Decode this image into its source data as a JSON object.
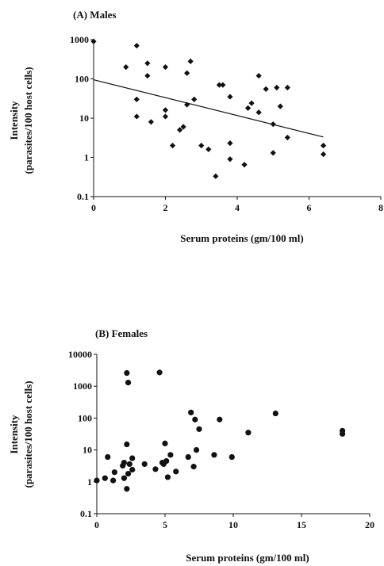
{
  "chart_data": [
    {
      "type": "scatter",
      "title": "(A) Males",
      "xlabel": "Serum proteins (gm/100 ml)",
      "ylabel": [
        "Intensity",
        "(parasites/100 host cells)"
      ],
      "xlim": [
        0,
        8
      ],
      "ylim": [
        0.1,
        1000
      ],
      "yscale": "log",
      "xticks": [
        "0",
        "2",
        "4",
        "6",
        "8"
      ],
      "yticks": [
        "0.1",
        "1",
        "10",
        "100",
        "1000"
      ],
      "marker": "diamond",
      "points": [
        [
          0.0,
          900
        ],
        [
          0.9,
          200
        ],
        [
          1.2,
          700
        ],
        [
          1.2,
          30
        ],
        [
          1.2,
          11
        ],
        [
          1.5,
          250
        ],
        [
          1.5,
          120
        ],
        [
          1.6,
          8
        ],
        [
          2.0,
          200
        ],
        [
          2.0,
          16
        ],
        [
          2.0,
          11
        ],
        [
          2.2,
          2
        ],
        [
          2.4,
          5
        ],
        [
          2.5,
          6
        ],
        [
          2.6,
          140
        ],
        [
          2.6,
          22
        ],
        [
          2.7,
          280
        ],
        [
          2.8,
          30
        ],
        [
          3.0,
          2
        ],
        [
          3.2,
          1.6
        ],
        [
          3.4,
          0.33
        ],
        [
          3.5,
          70
        ],
        [
          3.6,
          70
        ],
        [
          3.8,
          35
        ],
        [
          3.8,
          2.3
        ],
        [
          3.8,
          0.9
        ],
        [
          4.2,
          0.65
        ],
        [
          4.3,
          18
        ],
        [
          4.4,
          24
        ],
        [
          4.6,
          120
        ],
        [
          4.6,
          14
        ],
        [
          4.8,
          55
        ],
        [
          5.0,
          7
        ],
        [
          5.0,
          1.3
        ],
        [
          5.1,
          60
        ],
        [
          5.2,
          20
        ],
        [
          5.4,
          60
        ],
        [
          5.4,
          3.2
        ],
        [
          6.4,
          2
        ],
        [
          6.4,
          1.2
        ]
      ],
      "trendline": {
        "x": [
          0,
          6.4
        ],
        "y": [
          95,
          3.3
        ]
      }
    },
    {
      "type": "scatter",
      "title": "(B) Females",
      "xlabel": "Serum proteins (gm/100 ml)",
      "ylabel": [
        "Intensity",
        "(parasites/100 host cells)"
      ],
      "xlim": [
        0,
        20
      ],
      "ylim": [
        0.1,
        10000
      ],
      "yscale": "log",
      "xticks": [
        "0",
        "5",
        "10",
        "15",
        "20"
      ],
      "yticks": [
        "0.1",
        "1",
        "10",
        "100",
        "1000",
        "10000"
      ],
      "marker": "circle",
      "points": [
        [
          0.0,
          1.1
        ],
        [
          0.6,
          1.3
        ],
        [
          0.8,
          6
        ],
        [
          1.2,
          1.1
        ],
        [
          1.3,
          2
        ],
        [
          1.9,
          3.2
        ],
        [
          2.0,
          4
        ],
        [
          2.0,
          1.3
        ],
        [
          2.2,
          2600
        ],
        [
          2.3,
          1300
        ],
        [
          2.2,
          15
        ],
        [
          2.2,
          0.6
        ],
        [
          2.3,
          1.8
        ],
        [
          2.4,
          3.6
        ],
        [
          2.6,
          5.5
        ],
        [
          2.6,
          2.4
        ],
        [
          3.5,
          3.6
        ],
        [
          4.3,
          2.5
        ],
        [
          4.6,
          2700
        ],
        [
          4.8,
          4
        ],
        [
          4.9,
          3.6
        ],
        [
          5.0,
          16
        ],
        [
          5.1,
          4.5
        ],
        [
          5.2,
          1.4
        ],
        [
          5.4,
          7
        ],
        [
          5.8,
          2.1
        ],
        [
          6.7,
          6
        ],
        [
          6.9,
          150
        ],
        [
          7.1,
          3
        ],
        [
          7.2,
          90
        ],
        [
          7.3,
          10
        ],
        [
          7.5,
          45
        ],
        [
          8.6,
          7
        ],
        [
          9.0,
          90
        ],
        [
          9.9,
          6
        ],
        [
          11.1,
          35
        ],
        [
          13.1,
          140
        ],
        [
          18.0,
          40
        ],
        [
          18.0,
          32
        ]
      ]
    }
  ]
}
